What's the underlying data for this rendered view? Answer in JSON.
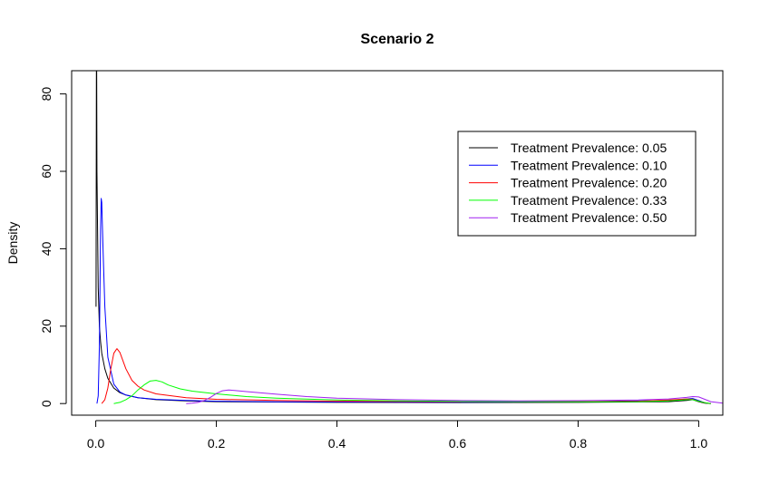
{
  "chart_data": {
    "type": "line",
    "title": "Scenario 2",
    "xlabel": "",
    "ylabel": "Density",
    "xlim": [
      -0.04,
      1.04
    ],
    "ylim": [
      -3,
      86
    ],
    "xticks": [
      0.0,
      0.2,
      0.4,
      0.6,
      0.8,
      1.0
    ],
    "xtick_labels": [
      "0.0",
      "0.2",
      "0.4",
      "0.6",
      "0.8",
      "1.0"
    ],
    "yticks": [
      0,
      20,
      40,
      60,
      80
    ],
    "ytick_labels": [
      "0",
      "20",
      "40",
      "60",
      "80"
    ],
    "grid": false,
    "legend_position": "top-right",
    "series": [
      {
        "name": "Treatment Prevalence: 0.05",
        "color": "#000000",
        "points": [
          [
            0.0005,
            25
          ],
          [
            0.001,
            86
          ],
          [
            0.0015,
            86
          ],
          [
            0.002,
            60
          ],
          [
            0.004,
            30
          ],
          [
            0.006,
            20
          ],
          [
            0.008,
            16
          ],
          [
            0.01,
            13
          ],
          [
            0.015,
            9
          ],
          [
            0.02,
            6.5
          ],
          [
            0.03,
            4.0
          ],
          [
            0.04,
            2.8
          ],
          [
            0.05,
            2.2
          ],
          [
            0.07,
            1.5
          ],
          [
            0.1,
            1.0
          ],
          [
            0.15,
            0.7
          ],
          [
            0.2,
            0.5
          ],
          [
            0.3,
            0.4
          ],
          [
            0.4,
            0.3
          ],
          [
            0.6,
            0.25
          ],
          [
            0.8,
            0.3
          ],
          [
            0.95,
            0.5
          ],
          [
            0.98,
            0.8
          ],
          [
            0.99,
            1.0
          ],
          [
            1.0,
            0.5
          ],
          [
            1.01,
            0.1
          ],
          [
            1.02,
            0.0
          ]
        ]
      },
      {
        "name": "Treatment Prevalence: 0.10",
        "color": "#0000ff",
        "points": [
          [
            0.002,
            0.0
          ],
          [
            0.004,
            2
          ],
          [
            0.006,
            15
          ],
          [
            0.008,
            45
          ],
          [
            0.009,
            53
          ],
          [
            0.01,
            52
          ],
          [
            0.012,
            40
          ],
          [
            0.015,
            25
          ],
          [
            0.02,
            12
          ],
          [
            0.03,
            5
          ],
          [
            0.04,
            3.0
          ],
          [
            0.05,
            2.2
          ],
          [
            0.07,
            1.5
          ],
          [
            0.1,
            1.1
          ],
          [
            0.15,
            0.8
          ],
          [
            0.2,
            0.6
          ],
          [
            0.3,
            0.45
          ],
          [
            0.4,
            0.4
          ],
          [
            0.6,
            0.35
          ],
          [
            0.8,
            0.45
          ],
          [
            0.95,
            0.8
          ],
          [
            0.98,
            1.2
          ],
          [
            0.99,
            1.3
          ],
          [
            1.0,
            0.8
          ],
          [
            1.01,
            0.2
          ],
          [
            1.02,
            0.0
          ]
        ]
      },
      {
        "name": "Treatment Prevalence: 0.20",
        "color": "#ff0000",
        "points": [
          [
            0.01,
            0.0
          ],
          [
            0.015,
            1
          ],
          [
            0.02,
            4
          ],
          [
            0.025,
            9
          ],
          [
            0.03,
            13
          ],
          [
            0.035,
            14.2
          ],
          [
            0.04,
            13.2
          ],
          [
            0.05,
            9
          ],
          [
            0.06,
            6
          ],
          [
            0.07,
            4.5
          ],
          [
            0.08,
            3.5
          ],
          [
            0.1,
            2.5
          ],
          [
            0.15,
            1.5
          ],
          [
            0.2,
            1.1
          ],
          [
            0.3,
            0.8
          ],
          [
            0.4,
            0.6
          ],
          [
            0.6,
            0.5
          ],
          [
            0.8,
            0.5
          ],
          [
            0.9,
            0.6
          ],
          [
            0.95,
            0.9
          ],
          [
            0.98,
            1.2
          ],
          [
            0.99,
            1.1
          ],
          [
            1.0,
            0.6
          ],
          [
            1.01,
            0.2
          ],
          [
            1.02,
            0.0
          ]
        ]
      },
      {
        "name": "Treatment Prevalence: 0.33",
        "color": "#00ff00",
        "points": [
          [
            0.03,
            0.0
          ],
          [
            0.04,
            0.3
          ],
          [
            0.05,
            1
          ],
          [
            0.06,
            2
          ],
          [
            0.07,
            3.5
          ],
          [
            0.08,
            4.8
          ],
          [
            0.09,
            5.8
          ],
          [
            0.1,
            6.0
          ],
          [
            0.11,
            5.6
          ],
          [
            0.12,
            4.8
          ],
          [
            0.14,
            3.8
          ],
          [
            0.16,
            3.2
          ],
          [
            0.2,
            2.5
          ],
          [
            0.25,
            1.8
          ],
          [
            0.3,
            1.4
          ],
          [
            0.4,
            0.9
          ],
          [
            0.5,
            0.7
          ],
          [
            0.6,
            0.55
          ],
          [
            0.8,
            0.45
          ],
          [
            0.9,
            0.5
          ],
          [
            0.95,
            0.7
          ],
          [
            0.98,
            1.0
          ],
          [
            0.99,
            1.0
          ],
          [
            1.0,
            0.6
          ],
          [
            1.01,
            0.2
          ],
          [
            1.02,
            0.0
          ]
        ]
      },
      {
        "name": "Treatment Prevalence: 0.50",
        "color": "#a020f0",
        "points": [
          [
            0.15,
            0.0
          ],
          [
            0.16,
            0.1
          ],
          [
            0.17,
            0.3
          ],
          [
            0.18,
            0.8
          ],
          [
            0.19,
            1.6
          ],
          [
            0.2,
            2.6
          ],
          [
            0.21,
            3.3
          ],
          [
            0.22,
            3.5
          ],
          [
            0.23,
            3.4
          ],
          [
            0.25,
            3.1
          ],
          [
            0.3,
            2.4
          ],
          [
            0.35,
            1.8
          ],
          [
            0.4,
            1.4
          ],
          [
            0.5,
            1.0
          ],
          [
            0.6,
            0.8
          ],
          [
            0.7,
            0.7
          ],
          [
            0.8,
            0.75
          ],
          [
            0.9,
            0.9
          ],
          [
            0.95,
            1.2
          ],
          [
            0.98,
            1.6
          ],
          [
            0.99,
            1.8
          ],
          [
            1.0,
            1.7
          ],
          [
            1.01,
            1.1
          ],
          [
            1.02,
            0.5
          ],
          [
            1.04,
            0.1
          ]
        ]
      }
    ]
  }
}
